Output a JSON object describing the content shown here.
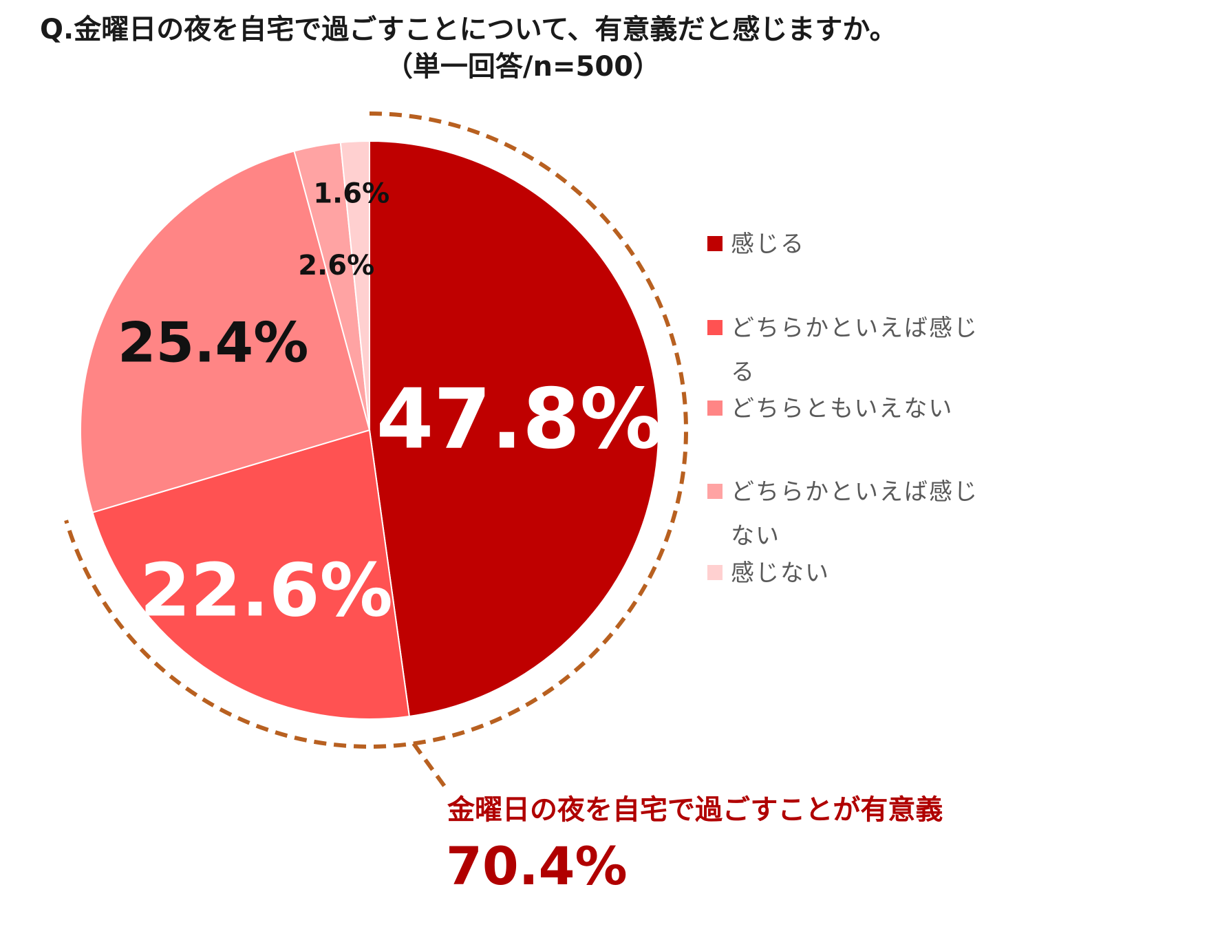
{
  "title_line1": "Q.金曜日の夜を自宅で過ごすことについて、有意義だと感じますか。",
  "title_line2": "（単一回答/n=500）",
  "chart_data": {
    "type": "pie",
    "start_angle_deg": 0,
    "direction": "clockwise",
    "legend_position": "right",
    "slices": [
      {
        "label": "感じる",
        "legend_lines": [
          "感じる"
        ],
        "value": 47.8,
        "display": "47.8%",
        "color": "#bf0000",
        "label_color": "#ffffff"
      },
      {
        "label": "どちらかといえば感じる",
        "legend_lines": [
          "どちらかといえば感じ",
          "る"
        ],
        "value": 22.6,
        "display": "22.6%",
        "color": "#ff5252",
        "label_color": "#ffffff"
      },
      {
        "label": "どちらともいえない",
        "legend_lines": [
          "どちらともいえない"
        ],
        "value": 25.4,
        "display": "25.4%",
        "color": "#ff8585",
        "label_color": "#111111"
      },
      {
        "label": "どちらかといえば感じない",
        "legend_lines": [
          "どちらかといえば感じ",
          "ない"
        ],
        "value": 2.6,
        "display": "2.6%",
        "color": "#ffa3a3",
        "label_color": "#111111"
      },
      {
        "label": "感じない",
        "legend_lines": [
          "感じない"
        ],
        "value": 1.6,
        "display": "1.6%",
        "color": "#ffd0d0",
        "label_color": "#111111"
      }
    ]
  },
  "callout": {
    "text": "金曜日の夜を自宅で過ごすことが有意義",
    "value": "70.4%",
    "color": "#b00000",
    "dash_color": "#b86020"
  }
}
